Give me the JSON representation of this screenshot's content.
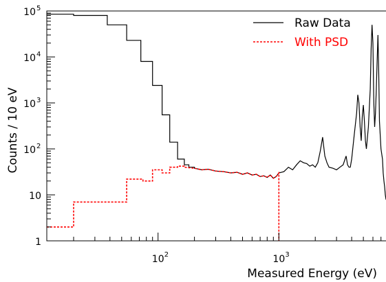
{
  "chart_data": {
    "type": "line",
    "xscale": "log",
    "yscale": "log",
    "xlim": [
      12,
      7800
    ],
    "ylim": [
      1,
      100000
    ],
    "xlabel": "Measured Energy (eV)",
    "ylabel": "Counts / 10 eV",
    "legend": {
      "position": "top-right"
    },
    "x_ticks": [
      {
        "base": "10",
        "exp": "2",
        "value": 100
      },
      {
        "base": "10",
        "exp": "3",
        "value": 1000
      }
    ],
    "y_ticks": [
      {
        "value": 1,
        "label": "1"
      },
      {
        "value": 10,
        "label": "10"
      },
      {
        "value": 100,
        "base": "10",
        "exp": "2"
      },
      {
        "value": 1000,
        "base": "10",
        "exp": "3"
      },
      {
        "value": 10000,
        "base": "10",
        "exp": "4"
      },
      {
        "value": 100000,
        "base": "10",
        "exp": "5"
      }
    ],
    "series": [
      {
        "name": "Raw Data",
        "color": "#000000",
        "style": "solid",
        "x": [
          12,
          20,
          20,
          38,
          38,
          55,
          55,
          72,
          72,
          90,
          90,
          108,
          108,
          125,
          125,
          145,
          145,
          165,
          165,
          180,
          180,
          200,
          200,
          230,
          260,
          300,
          350,
          400,
          450,
          500,
          550,
          600,
          650,
          700,
          750,
          800,
          850,
          900,
          950,
          1000,
          1100,
          1200,
          1300,
          1400,
          1500,
          1600,
          1700,
          1800,
          1900,
          2000,
          2100,
          2200,
          2300,
          2400,
          2500,
          2600,
          2800,
          3000,
          3200,
          3400,
          3600,
          3700,
          3800,
          3900,
          4000,
          4200,
          4400,
          4500,
          4600,
          4700,
          4800,
          4900,
          5000,
          5100,
          5200,
          5300,
          5500,
          5700,
          5800,
          5900,
          6000,
          6100,
          6200,
          6300,
          6400,
          6500,
          6600,
          6700,
          6800,
          7000,
          7200,
          7300,
          7400,
          7500,
          7600,
          7700,
          7800
        ],
        "values": [
          85000,
          85000,
          80000,
          80000,
          50000,
          50000,
          23000,
          23000,
          8000,
          8000,
          2400,
          2400,
          550,
          550,
          140,
          140,
          60,
          60,
          45,
          45,
          40,
          40,
          38,
          35,
          36,
          33,
          32,
          30,
          31,
          28,
          30,
          27,
          28,
          25,
          26,
          24,
          27,
          23,
          25,
          30,
          32,
          40,
          35,
          45,
          55,
          50,
          48,
          42,
          45,
          40,
          50,
          90,
          180,
          70,
          50,
          40,
          38,
          35,
          40,
          45,
          70,
          45,
          40,
          40,
          60,
          200,
          600,
          1500,
          1000,
          300,
          150,
          500,
          900,
          400,
          150,
          100,
          300,
          2000,
          15000,
          50000,
          20000,
          1000,
          300,
          600,
          2000,
          8000,
          30000,
          5000,
          400,
          100,
          60,
          30,
          20,
          15,
          10,
          8,
          8
        ]
      },
      {
        "name": "With PSD",
        "color": "#ff0000",
        "style": "dashed",
        "x": [
          12,
          20,
          20,
          55,
          55,
          75,
          75,
          90,
          90,
          108,
          108,
          125,
          125,
          145,
          145,
          165,
          165,
          200,
          230,
          260,
          300,
          350,
          400,
          450,
          500,
          550,
          600,
          650,
          700,
          750,
          800,
          850,
          900,
          950,
          1000,
          1000
        ],
        "values": [
          2,
          2,
          7,
          7,
          22,
          22,
          20,
          20,
          35,
          35,
          30,
          30,
          40,
          40,
          42,
          42,
          40,
          38,
          35,
          36,
          33,
          32,
          30,
          31,
          28,
          30,
          27,
          28,
          25,
          26,
          24,
          27,
          23,
          25,
          30,
          1
        ]
      }
    ]
  }
}
